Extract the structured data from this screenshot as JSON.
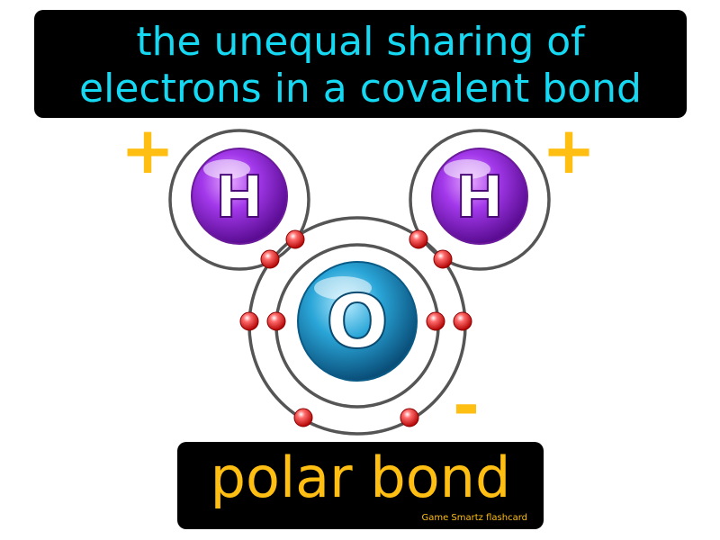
{
  "definition": {
    "line1": "the unequal sharing of",
    "line2": "electrons in a covalent bond"
  },
  "term": "polar bond",
  "credit": "Game Smartz flashcard",
  "diagram": {
    "atoms": [
      {
        "id": "hydrogen-left",
        "symbol": "H",
        "color": "#9b2ee0"
      },
      {
        "id": "hydrogen-right",
        "symbol": "H",
        "color": "#9b2ee0"
      },
      {
        "id": "oxygen",
        "symbol": "O",
        "color": "#1a9fd0"
      }
    ],
    "charges": [
      {
        "id": "charge-left",
        "symbol": "+"
      },
      {
        "id": "charge-right",
        "symbol": "+"
      },
      {
        "id": "charge-oxygen",
        "symbol": "-"
      }
    ],
    "electron_color": "#e02626"
  },
  "colors": {
    "definition_text": "#15d8f2",
    "term_text": "#ffbe12",
    "charge": "#ffbe12",
    "background_box": "#000000"
  }
}
